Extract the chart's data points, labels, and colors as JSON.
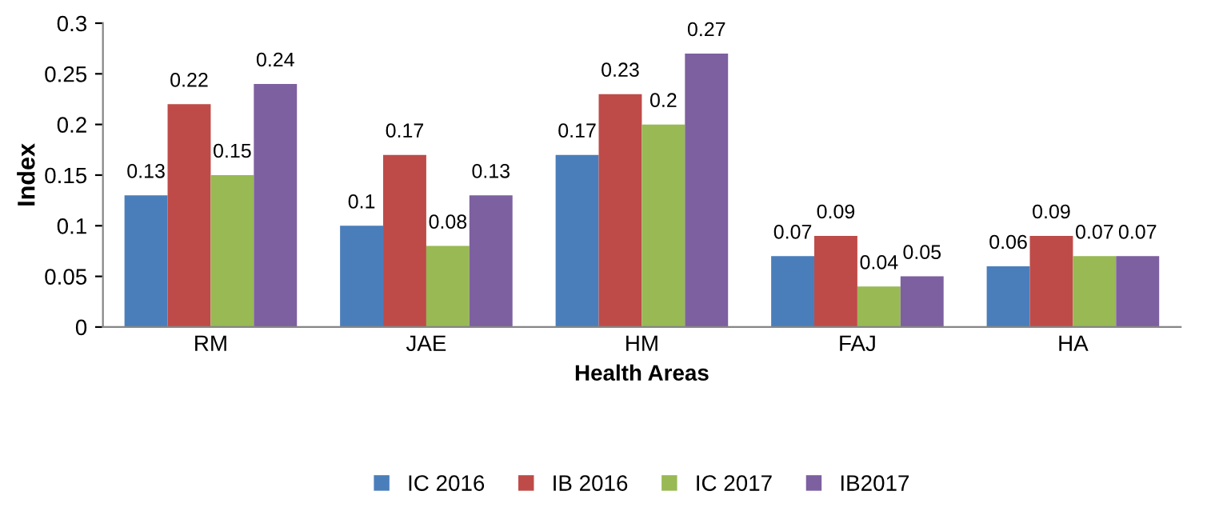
{
  "chart_data": {
    "type": "bar",
    "xlabel": "Health Areas",
    "ylabel": "Index",
    "categories": [
      "RM",
      "JAE",
      "HM",
      "FAJ",
      "HA"
    ],
    "series": [
      {
        "name": "IC 2016",
        "color": "#4a7ebb",
        "values": [
          0.13,
          0.1,
          0.17,
          0.07,
          0.06
        ]
      },
      {
        "name": "IB 2016",
        "color": "#be4b48",
        "values": [
          0.22,
          0.17,
          0.23,
          0.09,
          0.09
        ]
      },
      {
        "name": "IC 2017",
        "color": "#98b954",
        "values": [
          0.15,
          0.08,
          0.2,
          0.04,
          0.07
        ]
      },
      {
        "name": "IB2017",
        "color": "#7d60a0",
        "values": [
          0.24,
          0.13,
          0.27,
          0.05,
          0.07
        ]
      }
    ],
    "ylim": [
      0,
      0.3
    ],
    "yticks": [
      0,
      0.05,
      0.1,
      0.15,
      0.2,
      0.25,
      0.3
    ],
    "data_labels": true,
    "grid": false,
    "legend": "bottom"
  }
}
